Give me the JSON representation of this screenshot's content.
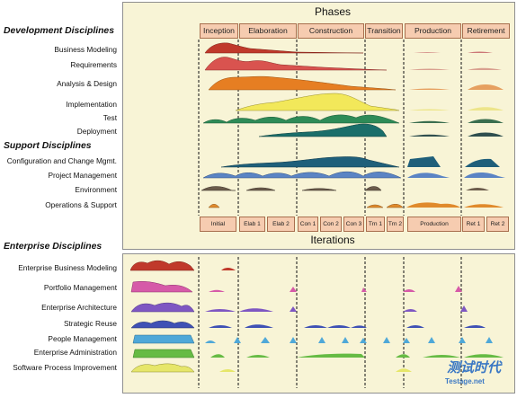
{
  "header": {
    "phases_title": "Phases",
    "iterations_title": "Iterations"
  },
  "phases": [
    "Inception",
    "Elaboration",
    "Construction",
    "Transition",
    "Production",
    "Retirement"
  ],
  "iterations": [
    "Initial",
    "Elab 1",
    "Elab 2",
    "Con 1",
    "Con 2",
    "Con 3",
    "Trn 1",
    "Trn 2",
    "Production",
    "Ret 1",
    "Ret 2"
  ],
  "groups": {
    "development": "Development Disciplines",
    "support": "Support Disciplines",
    "enterprise": "Enterprise Disciplines"
  },
  "development_disciplines": [
    "Business Modeling",
    "Requirements",
    "Analysis & Design",
    "Implementation",
    "Test",
    "Deployment"
  ],
  "support_disciplines": [
    "Configuration and Change Mgmt.",
    "Project Management",
    "Environment",
    "Operations & Support"
  ],
  "enterprise_disciplines": [
    "Enterprise Business Modeling",
    "Portfolio Management",
    "Enterprise Architecture",
    "Strategic Reuse",
    "People Management",
    "Enterprise Administration",
    "Software Process Improvement"
  ],
  "colors": {
    "panel": "#f8f4d6",
    "cell": "#f6ccb0",
    "business_modeling": "#c0392b",
    "requirements": "#d9534f",
    "analysis_design": "#e67e22",
    "implementation": "#f2e85a",
    "test": "#2e8b57",
    "deployment": "#1b6e6a",
    "config_mgmt": "#1f5f7a",
    "project_mgmt": "#5b84c4",
    "environment": "#6b5b4b",
    "operations": "#e08a2c",
    "ent_business_modeling": "#c0392b",
    "portfolio": "#d65aa8",
    "ent_architecture": "#7e57c2",
    "strategic_reuse": "#3f51b5",
    "people_mgmt": "#4fa8d8",
    "ent_admin": "#66bb44",
    "spi": "#e6e66a"
  },
  "watermark": {
    "line1": "测试时代",
    "line2": "Testage.net"
  }
}
